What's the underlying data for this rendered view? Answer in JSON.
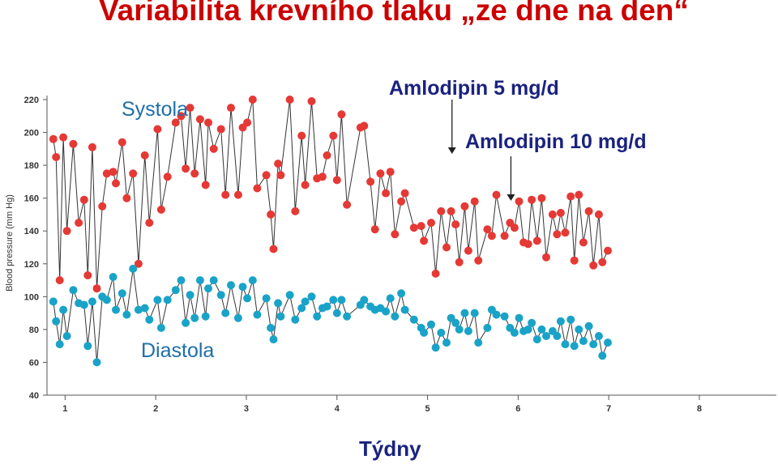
{
  "title": "Variabilita krevního tlaku „ze dne na den“",
  "chart_data": {
    "type": "line",
    "xlabel": "Týdny",
    "ylabel": "Blood pressure (mm Hg)",
    "xlim": [
      0.8,
      8.85
    ],
    "ylim": [
      40,
      220
    ],
    "y_ticks": [
      40,
      60,
      80,
      100,
      120,
      140,
      160,
      180,
      200,
      220
    ],
    "x_ticks": [
      1,
      2,
      3,
      4,
      5,
      6,
      7,
      8
    ],
    "grid": false,
    "colors": {
      "systola": "#e53935",
      "diastola": "#1aa3c8",
      "line": "#333333",
      "annotation": "#1a237e"
    },
    "series": [
      {
        "name": "Systola",
        "points": [
          [
            0.87,
            196
          ],
          [
            0.9,
            185
          ],
          [
            0.94,
            110
          ],
          [
            0.98,
            197
          ],
          [
            1.02,
            140
          ],
          [
            1.09,
            193
          ],
          [
            1.15,
            145
          ],
          [
            1.21,
            159
          ],
          [
            1.25,
            113
          ],
          [
            1.3,
            191
          ],
          [
            1.35,
            105
          ],
          [
            1.41,
            155
          ],
          [
            1.46,
            175
          ],
          [
            1.53,
            176
          ],
          [
            1.56,
            169
          ],
          [
            1.63,
            194
          ],
          [
            1.68,
            160
          ],
          [
            1.75,
            175
          ],
          [
            1.81,
            120
          ],
          [
            1.88,
            186
          ],
          [
            1.93,
            145
          ],
          [
            2.02,
            202
          ],
          [
            2.06,
            153
          ],
          [
            2.13,
            173
          ],
          [
            2.22,
            206
          ],
          [
            2.28,
            210
          ],
          [
            2.33,
            178
          ],
          [
            2.38,
            215
          ],
          [
            2.43,
            175
          ],
          [
            2.49,
            208
          ],
          [
            2.55,
            168
          ],
          [
            2.58,
            206
          ],
          [
            2.64,
            190
          ],
          [
            2.72,
            202
          ],
          [
            2.77,
            162
          ],
          [
            2.83,
            215
          ],
          [
            2.91,
            162
          ],
          [
            2.96,
            203
          ],
          [
            3.01,
            206
          ],
          [
            3.07,
            220
          ],
          [
            3.12,
            166
          ],
          [
            3.22,
            174
          ],
          [
            3.27,
            150
          ],
          [
            3.3,
            129
          ],
          [
            3.35,
            181
          ],
          [
            3.38,
            174
          ],
          [
            3.48,
            220
          ],
          [
            3.54,
            152
          ],
          [
            3.61,
            198
          ],
          [
            3.65,
            168
          ],
          [
            3.72,
            219
          ],
          [
            3.78,
            172
          ],
          [
            3.84,
            173
          ],
          [
            3.89,
            186
          ],
          [
            3.96,
            198
          ],
          [
            4.0,
            171
          ],
          [
            4.05,
            211
          ],
          [
            4.11,
            156
          ],
          [
            4.26,
            203
          ],
          [
            4.3,
            204
          ],
          [
            4.37,
            170
          ],
          [
            4.42,
            141
          ],
          [
            4.48,
            175
          ],
          [
            4.54,
            163
          ],
          [
            4.59,
            176
          ],
          [
            4.64,
            138
          ],
          [
            4.71,
            158
          ],
          [
            4.75,
            163
          ],
          [
            4.85,
            142
          ],
          [
            4.93,
            143
          ],
          [
            4.96,
            134
          ],
          [
            5.04,
            145
          ],
          [
            5.09,
            114
          ],
          [
            5.15,
            152
          ],
          [
            5.21,
            130
          ],
          [
            5.26,
            152
          ],
          [
            5.31,
            144
          ],
          [
            5.35,
            121
          ],
          [
            5.41,
            155
          ],
          [
            5.45,
            128
          ],
          [
            5.52,
            158
          ],
          [
            5.56,
            122
          ],
          [
            5.66,
            141
          ],
          [
            5.71,
            137
          ],
          [
            5.76,
            162
          ],
          [
            5.85,
            137
          ],
          [
            5.91,
            145
          ],
          [
            5.96,
            142
          ],
          [
            6.01,
            158
          ],
          [
            6.06,
            133
          ],
          [
            6.11,
            132
          ],
          [
            6.15,
            159
          ],
          [
            6.21,
            134
          ],
          [
            6.26,
            160
          ],
          [
            6.31,
            124
          ],
          [
            6.38,
            150
          ],
          [
            6.43,
            138
          ],
          [
            6.47,
            151
          ],
          [
            6.52,
            139
          ],
          [
            6.58,
            161
          ],
          [
            6.62,
            122
          ],
          [
            6.67,
            162
          ],
          [
            6.72,
            133
          ],
          [
            6.78,
            152
          ],
          [
            6.83,
            119
          ],
          [
            6.89,
            150
          ],
          [
            6.93,
            121
          ],
          [
            6.99,
            128
          ]
        ]
      },
      {
        "name": "Diastola",
        "points": [
          [
            0.87,
            97
          ],
          [
            0.9,
            85
          ],
          [
            0.94,
            71
          ],
          [
            0.98,
            92
          ],
          [
            1.02,
            76
          ],
          [
            1.09,
            104
          ],
          [
            1.15,
            96
          ],
          [
            1.21,
            95
          ],
          [
            1.25,
            70
          ],
          [
            1.3,
            97
          ],
          [
            1.35,
            60
          ],
          [
            1.41,
            100
          ],
          [
            1.46,
            98
          ],
          [
            1.53,
            112
          ],
          [
            1.56,
            92
          ],
          [
            1.63,
            102
          ],
          [
            1.68,
            89
          ],
          [
            1.75,
            117
          ],
          [
            1.81,
            92
          ],
          [
            1.88,
            93
          ],
          [
            1.93,
            86
          ],
          [
            2.02,
            98
          ],
          [
            2.06,
            81
          ],
          [
            2.13,
            98
          ],
          [
            2.22,
            104
          ],
          [
            2.28,
            110
          ],
          [
            2.33,
            84
          ],
          [
            2.38,
            101
          ],
          [
            2.43,
            87
          ],
          [
            2.49,
            110
          ],
          [
            2.55,
            88
          ],
          [
            2.58,
            105
          ],
          [
            2.64,
            110
          ],
          [
            2.72,
            101
          ],
          [
            2.77,
            90
          ],
          [
            2.83,
            107
          ],
          [
            2.91,
            87
          ],
          [
            2.96,
            106
          ],
          [
            3.01,
            99
          ],
          [
            3.07,
            110
          ],
          [
            3.12,
            89
          ],
          [
            3.22,
            99
          ],
          [
            3.27,
            81
          ],
          [
            3.3,
            74
          ],
          [
            3.35,
            96
          ],
          [
            3.38,
            88
          ],
          [
            3.48,
            101
          ],
          [
            3.54,
            86
          ],
          [
            3.61,
            93
          ],
          [
            3.65,
            97
          ],
          [
            3.72,
            100
          ],
          [
            3.78,
            88
          ],
          [
            3.84,
            93
          ],
          [
            3.89,
            94
          ],
          [
            3.96,
            98
          ],
          [
            4.0,
            90
          ],
          [
            4.05,
            98
          ],
          [
            4.11,
            88
          ],
          [
            4.26,
            95
          ],
          [
            4.3,
            98
          ],
          [
            4.37,
            94
          ],
          [
            4.42,
            92
          ],
          [
            4.48,
            93
          ],
          [
            4.54,
            91
          ],
          [
            4.59,
            99
          ],
          [
            4.64,
            88
          ],
          [
            4.71,
            102
          ],
          [
            4.75,
            92
          ],
          [
            4.85,
            86
          ],
          [
            4.93,
            81
          ],
          [
            4.96,
            78
          ],
          [
            5.04,
            83
          ],
          [
            5.09,
            69
          ],
          [
            5.15,
            78
          ],
          [
            5.21,
            72
          ],
          [
            5.26,
            87
          ],
          [
            5.31,
            84
          ],
          [
            5.35,
            80
          ],
          [
            5.41,
            90
          ],
          [
            5.45,
            79
          ],
          [
            5.52,
            90
          ],
          [
            5.56,
            72
          ],
          [
            5.66,
            81
          ],
          [
            5.71,
            92
          ],
          [
            5.76,
            89
          ],
          [
            5.85,
            88
          ],
          [
            5.91,
            81
          ],
          [
            5.96,
            78
          ],
          [
            6.01,
            87
          ],
          [
            6.06,
            79
          ],
          [
            6.11,
            80
          ],
          [
            6.15,
            84
          ],
          [
            6.21,
            74
          ],
          [
            6.26,
            80
          ],
          [
            6.31,
            76
          ],
          [
            6.38,
            79
          ],
          [
            6.43,
            76
          ],
          [
            6.47,
            85
          ],
          [
            6.52,
            71
          ],
          [
            6.58,
            86
          ],
          [
            6.62,
            70
          ],
          [
            6.67,
            80
          ],
          [
            6.72,
            73
          ],
          [
            6.78,
            82
          ],
          [
            6.83,
            71
          ],
          [
            6.89,
            76
          ],
          [
            6.93,
            64
          ],
          [
            6.99,
            72
          ]
        ]
      }
    ],
    "series_labels": {
      "systola": "Systola",
      "diastola": "Diastola"
    },
    "annotations": [
      {
        "text": "Amlodipin 5 mg/d",
        "x": 5.27
      },
      {
        "text": "Amlodipin 10 mg/d",
        "x": 5.92
      }
    ]
  }
}
